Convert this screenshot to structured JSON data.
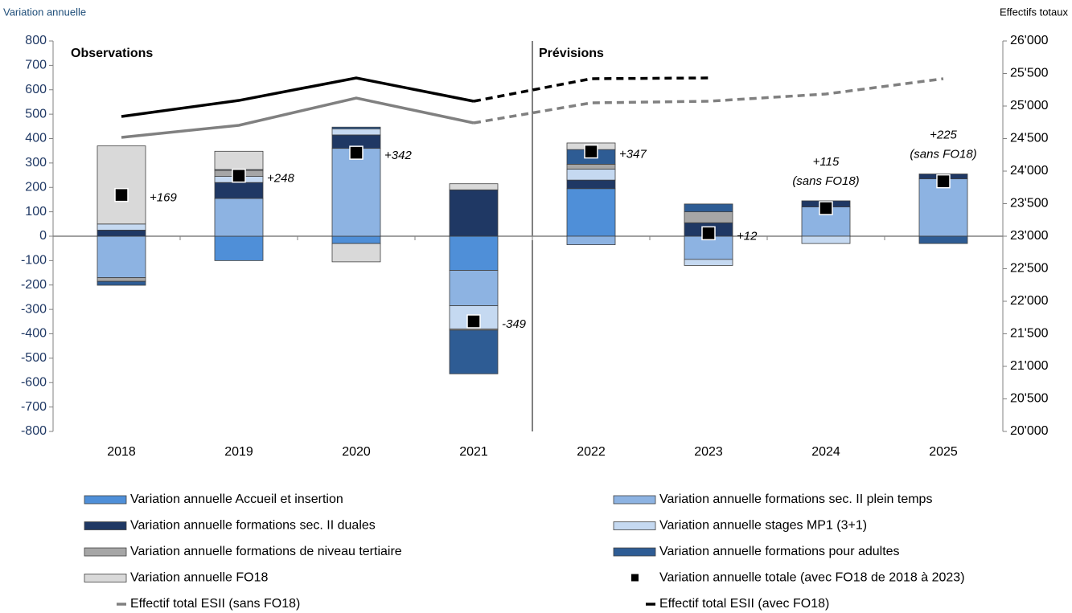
{
  "chart_data": {
    "type": "bar",
    "stacked": true,
    "y_label": "Variation annuelle",
    "y2_label": "Effectifs totaux",
    "sections": [
      "Observations",
      "Prévisions"
    ],
    "forecast_from": "2021",
    "categories": [
      "2018",
      "2019",
      "2020",
      "2021",
      "2022",
      "2023",
      "2024",
      "2025"
    ],
    "series": [
      {
        "name": "Variation annuelle Accueil et insertion",
        "color": "#4f8fd8",
        "values": [
          0,
          -100,
          -30,
          -140,
          195,
          0,
          0,
          0
        ]
      },
      {
        "name": "Variation annuelle formations sec. II plein temps",
        "color": "#8db3e2",
        "values": [
          -170,
          155,
          360,
          -145,
          -35,
          -95,
          120,
          235
        ]
      },
      {
        "name": "Variation annuelle formations sec. II duales",
        "color": "#1f3864",
        "values": [
          25,
          65,
          55,
          190,
          35,
          55,
          25,
          20
        ]
      },
      {
        "name": "Variation annuelle stages MP1 (3+1)",
        "color": "#c5d9f1",
        "values": [
          25,
          25,
          25,
          -95,
          45,
          -25,
          -30,
          0
        ]
      },
      {
        "name": "Variation annuelle formations de niveau tertiaire",
        "color": "#a6a6a6",
        "values": [
          -15,
          25,
          0,
          -5,
          20,
          45,
          0,
          0
        ]
      },
      {
        "name": "Variation annuelle formations pour adultes",
        "color": "#2e5c94",
        "values": [
          -16,
          3,
          7,
          -179,
          60,
          32,
          0,
          -30
        ]
      },
      {
        "name": "Variation annuelle FO18",
        "color": "#d9d9d9",
        "values": [
          320,
          75,
          -75,
          25,
          27,
          0,
          0,
          0
        ]
      }
    ],
    "totals": {
      "name": "Variation annuelle totale (avec FO18 de 2018 à 2023)",
      "color": "#000000",
      "values": [
        169,
        248,
        342,
        -349,
        347,
        12,
        115,
        225
      ],
      "value_labels": [
        "+169",
        "+248",
        "+342",
        "-349",
        "+347",
        "+12",
        "+115",
        "+225"
      ]
    },
    "annotations": [
      {
        "category": "2024",
        "text": "(sans FO18)"
      },
      {
        "category": "2025",
        "text": "(sans FO18)"
      }
    ],
    "lines": [
      {
        "name": "Effectif total ESII (sans FO18)",
        "color": "#808080",
        "axis": "y2",
        "values": [
          24519,
          24704,
          25123,
          24741,
          25049,
          25074,
          25185,
          25420
        ]
      },
      {
        "name": "Effectif total ESII (avec FO18)",
        "color": "#000000",
        "axis": "y2",
        "values": [
          24840,
          25086,
          25432,
          25074,
          25420,
          25432,
          null,
          null
        ]
      }
    ],
    "ylim": [
      -800,
      800
    ],
    "yticks": [
      -800,
      -700,
      -600,
      -500,
      -400,
      -300,
      -200,
      -100,
      0,
      100,
      200,
      300,
      400,
      500,
      600,
      700,
      800
    ],
    "y2lim": [
      20000,
      26000
    ],
    "y2ticks": [
      {
        "value": 20000,
        "label": "20'000"
      },
      {
        "value": 20500,
        "label": "20'500"
      },
      {
        "value": 21000,
        "label": "21'000"
      },
      {
        "value": 21500,
        "label": "21'500"
      },
      {
        "value": 22000,
        "label": "22'000"
      },
      {
        "value": 22500,
        "label": "22'500"
      },
      {
        "value": 23000,
        "label": "23'000"
      },
      {
        "value": 23500,
        "label": "23'500"
      },
      {
        "value": 24000,
        "label": "24'000"
      },
      {
        "value": 24500,
        "label": "24'500"
      },
      {
        "value": 25000,
        "label": "25'000"
      },
      {
        "value": 25500,
        "label": "25'500"
      },
      {
        "value": 26000,
        "label": "26'000"
      }
    ]
  }
}
